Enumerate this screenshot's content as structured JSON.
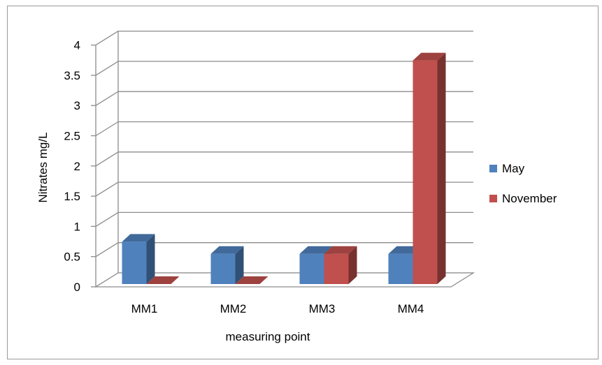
{
  "chart_data": {
    "type": "bar",
    "style": "3d-clustered-column",
    "categories": [
      "MM1",
      "MM2",
      "MM3",
      "MM4"
    ],
    "series": [
      {
        "name": "May",
        "values": [
          0.7,
          0.5,
          0.5,
          0.5
        ],
        "color": "#4f81bd"
      },
      {
        "name": "November",
        "values": [
          0.0,
          0.0,
          0.5,
          3.7
        ],
        "color": "#c0504d"
      }
    ],
    "yticks": [
      "0",
      "0.5",
      "1",
      "1.5",
      "2",
      "2.5",
      "3",
      "3.5",
      "4"
    ],
    "ylim": [
      0,
      4
    ],
    "xlabel": "measuring point",
    "ylabel": "Nitrates mg/L",
    "grid": true,
    "legend_position": "right"
  }
}
